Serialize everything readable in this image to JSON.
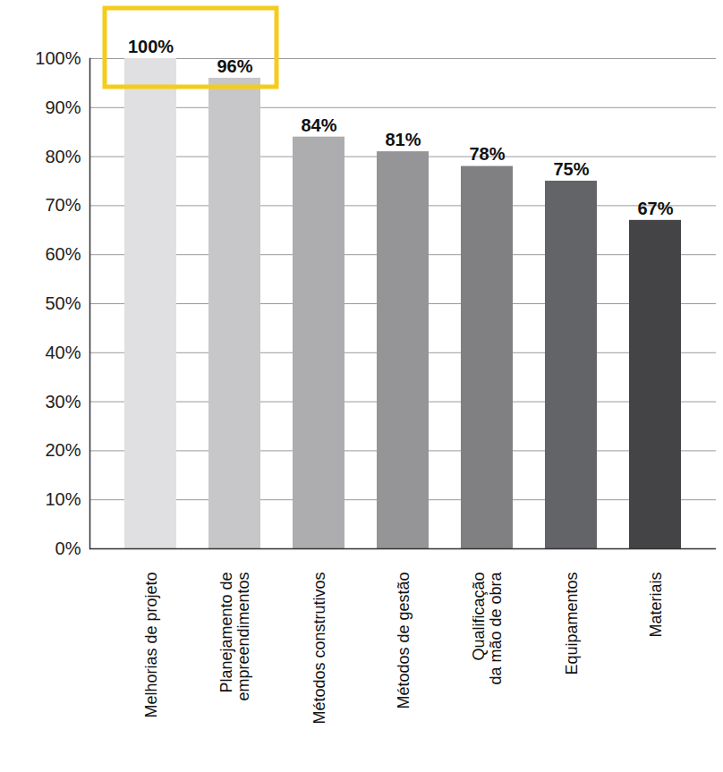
{
  "chart_data": {
    "type": "bar",
    "categories": [
      "Melhorias de projeto",
      "Planejamento de\nempreendimentos",
      "Métodos construtivos",
      "Métodos de gestão",
      "Qualificação\nda mão de obra",
      "Equipamentos",
      "Materiais"
    ],
    "values": [
      100,
      96,
      84,
      81,
      78,
      75,
      67
    ],
    "value_labels": [
      "100%",
      "96%",
      "84%",
      "81%",
      "78%",
      "75%",
      "67%"
    ],
    "colors": [
      "#e0e0e2",
      "#c7c7c9",
      "#adadaf",
      "#959597",
      "#808083",
      "#636467",
      "#444446"
    ],
    "ylim": [
      0,
      100
    ],
    "yticks": [
      {
        "value": 0,
        "label": "0%"
      },
      {
        "value": 10,
        "label": "10%"
      },
      {
        "value": 20,
        "label": "20%"
      },
      {
        "value": 30,
        "label": "30%"
      },
      {
        "value": 40,
        "label": "40%"
      },
      {
        "value": 50,
        "label": "50%"
      },
      {
        "value": 60,
        "label": "60%"
      },
      {
        "value": 70,
        "label": "70%"
      },
      {
        "value": 80,
        "label": "80%"
      },
      {
        "value": 90,
        "label": "90%"
      },
      {
        "value": 100,
        "label": "100%"
      }
    ],
    "grid": true,
    "data_labels": true
  }
}
